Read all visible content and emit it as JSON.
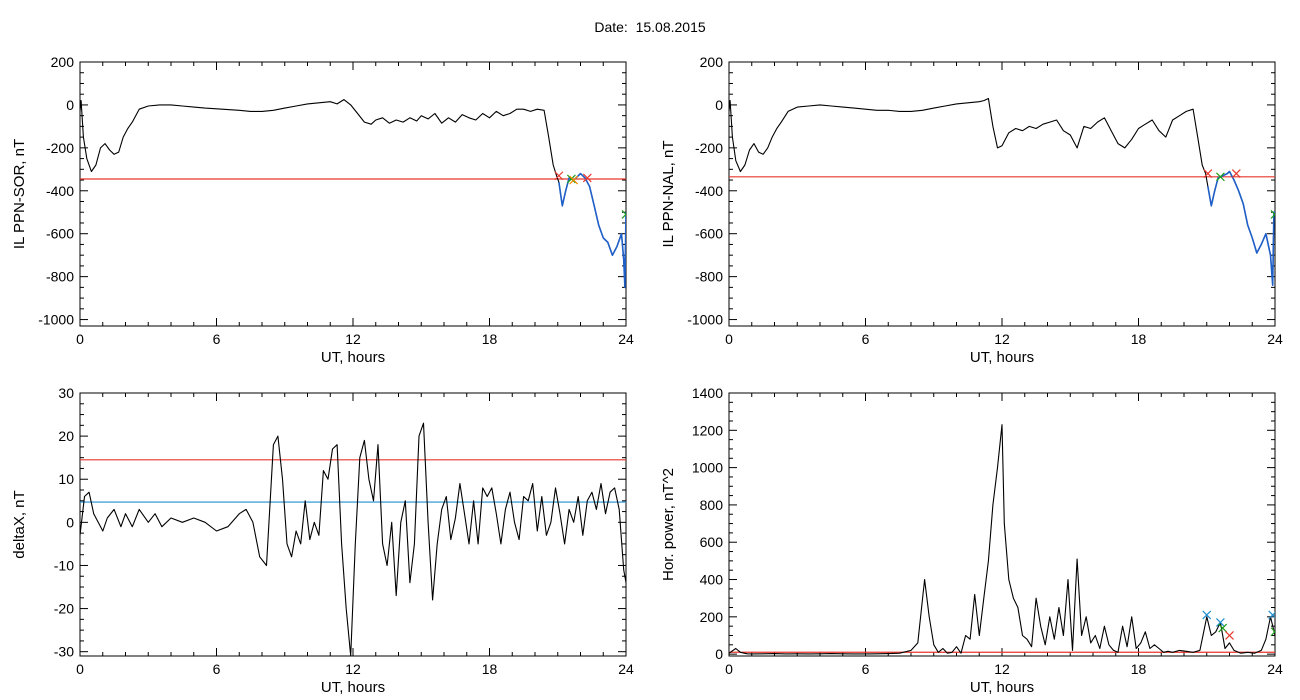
{
  "header": {
    "date_label": "Date:",
    "date_value": "15.08.2015"
  },
  "colors": {
    "trace": "#000000",
    "threshold_red": "#e8372c",
    "threshold_blue": "#1f8fd0",
    "substorm_blue": "#1f5fc8",
    "marker_green": "#1aa01a",
    "marker_blue": "#1f8fd0"
  },
  "chart_data": [
    {
      "id": "sor",
      "type": "line",
      "title": "",
      "xlabel": "UT, hours",
      "ylabel": "IL PPN-SOR, nT",
      "xlim": [
        0,
        24
      ],
      "ylim": [
        -1030,
        200
      ],
      "xticks": [
        0,
        6,
        12,
        18,
        24
      ],
      "yticks": [
        -1000,
        -800,
        -600,
        -400,
        -200,
        0,
        200
      ],
      "series": [
        {
          "color": "#000000",
          "x": [
            0,
            0.05,
            0.15,
            0.3,
            0.5,
            0.7,
            0.9,
            1.1,
            1.3,
            1.5,
            1.7,
            1.9,
            2.1,
            2.3,
            2.6,
            3.0,
            3.5,
            4.0,
            4.5,
            5.0,
            5.5,
            6.0,
            6.5,
            7.0,
            7.5,
            8.0,
            8.5,
            9.0,
            9.5,
            10.0,
            10.5,
            11.0,
            11.3,
            11.6,
            11.9,
            12.2,
            12.5,
            12.8,
            13.0,
            13.3,
            13.6,
            13.9,
            14.2,
            14.5,
            14.8,
            15.0,
            15.3,
            15.6,
            15.9,
            16.2,
            16.5,
            16.8,
            17.1,
            17.4,
            17.7,
            18.0,
            18.3,
            18.6,
            18.9,
            19.2,
            19.5,
            19.8,
            20.1,
            20.4,
            20.6,
            20.8,
            20.95,
            21.05,
            21.2,
            21.35,
            21.5,
            21.7,
            21.9,
            22.0,
            22.2,
            22.4,
            22.6,
            22.8,
            23.0,
            23.2,
            23.4,
            23.6,
            23.8,
            23.9,
            23.95,
            24.0
          ],
          "y": [
            -30,
            20,
            -150,
            -250,
            -310,
            -280,
            -200,
            -180,
            -210,
            -230,
            -220,
            -150,
            -110,
            -80,
            -20,
            -5,
            0,
            0,
            -5,
            -10,
            -15,
            -18,
            -22,
            -25,
            -30,
            -30,
            -25,
            -15,
            -5,
            5,
            10,
            15,
            5,
            25,
            0,
            -40,
            -80,
            -90,
            -70,
            -60,
            -85,
            -70,
            -80,
            -60,
            -75,
            -50,
            -65,
            -40,
            -85,
            -60,
            -80,
            -45,
            -60,
            -70,
            -40,
            -60,
            -30,
            -50,
            -40,
            -20,
            -20,
            -30,
            -20,
            -25,
            -150,
            -280,
            -330,
            -360,
            -470,
            -400,
            -340,
            -350,
            -330,
            -320,
            -340,
            -380,
            -470,
            -560,
            -620,
            -640,
            -700,
            -660,
            -600,
            -720,
            -850,
            -500
          ]
        }
      ],
      "threshold_lines": [
        {
          "y": -345,
          "color": "#e8372c"
        }
      ],
      "markers": [
        {
          "x": 21.05,
          "y": -330,
          "color": "#e8372c",
          "symbol": "x"
        },
        {
          "x": 21.6,
          "y": -345,
          "color": "#1aa01a",
          "symbol": "x"
        },
        {
          "x": 21.7,
          "y": -350,
          "color": "#ff8c00",
          "symbol": "x"
        },
        {
          "x": 22.3,
          "y": -340,
          "color": "#e8372c",
          "symbol": "x"
        },
        {
          "x": 24.0,
          "y": -510,
          "color": "#1aa01a",
          "symbol": "x"
        }
      ],
      "highlight": {
        "x_from": 21.0,
        "x_to": 24.0,
        "color": "#1f5fc8"
      }
    },
    {
      "id": "nal",
      "type": "line",
      "title": "",
      "xlabel": "UT, hours",
      "ylabel": "IL PPN-NAL, nT",
      "xlim": [
        0,
        24
      ],
      "ylim": [
        -1030,
        200
      ],
      "xticks": [
        0,
        6,
        12,
        18,
        24
      ],
      "yticks": [
        -1000,
        -800,
        -600,
        -400,
        -200,
        0,
        200
      ],
      "series": [
        {
          "color": "#000000",
          "x": [
            0,
            0.05,
            0.15,
            0.3,
            0.5,
            0.7,
            0.9,
            1.1,
            1.3,
            1.5,
            1.7,
            1.9,
            2.1,
            2.3,
            2.6,
            3.0,
            3.5,
            4.0,
            4.5,
            5.0,
            5.5,
            6.0,
            6.5,
            7.0,
            7.5,
            8.0,
            8.5,
            9.0,
            9.5,
            10.0,
            10.5,
            11.0,
            11.2,
            11.4,
            11.6,
            11.8,
            12.0,
            12.3,
            12.6,
            12.9,
            13.2,
            13.5,
            13.8,
            14.1,
            14.4,
            14.7,
            15.0,
            15.3,
            15.6,
            15.9,
            16.2,
            16.5,
            16.8,
            17.1,
            17.4,
            17.7,
            18.0,
            18.3,
            18.6,
            18.9,
            19.2,
            19.5,
            19.8,
            20.1,
            20.4,
            20.6,
            20.8,
            20.95,
            21.05,
            21.2,
            21.35,
            21.5,
            21.7,
            21.9,
            22.0,
            22.2,
            22.4,
            22.6,
            22.8,
            23.0,
            23.2,
            23.4,
            23.6,
            23.8,
            23.9,
            23.95,
            24.0
          ],
          "y": [
            -30,
            20,
            -150,
            -260,
            -310,
            -280,
            -210,
            -180,
            -220,
            -230,
            -200,
            -150,
            -110,
            -80,
            -30,
            -10,
            -5,
            0,
            -5,
            -10,
            -15,
            -20,
            -25,
            -25,
            -30,
            -30,
            -25,
            -15,
            -5,
            5,
            10,
            15,
            20,
            30,
            -100,
            -200,
            -190,
            -130,
            -110,
            -120,
            -100,
            -110,
            -90,
            -80,
            -70,
            -120,
            -140,
            -200,
            -100,
            -110,
            -80,
            -60,
            -120,
            -180,
            -200,
            -160,
            -110,
            -90,
            -70,
            -120,
            -150,
            -70,
            -50,
            -30,
            -20,
            -150,
            -280,
            -320,
            -380,
            -470,
            -400,
            -340,
            -330,
            -320,
            -310,
            -350,
            -400,
            -460,
            -560,
            -620,
            -690,
            -650,
            -600,
            -700,
            -840,
            -500,
            -500
          ]
        }
      ],
      "threshold_lines": [
        {
          "y": -335,
          "color": "#e8372c"
        }
      ],
      "markers": [
        {
          "x": 21.05,
          "y": -320,
          "color": "#e8372c",
          "symbol": "x"
        },
        {
          "x": 21.6,
          "y": -335,
          "color": "#1aa01a",
          "symbol": "x"
        },
        {
          "x": 22.3,
          "y": -320,
          "color": "#e8372c",
          "symbol": "x"
        },
        {
          "x": 24.0,
          "y": -510,
          "color": "#1aa01a",
          "symbol": "x"
        }
      ],
      "highlight": {
        "x_from": 21.0,
        "x_to": 24.0,
        "color": "#1f5fc8"
      }
    },
    {
      "id": "deltax",
      "type": "line",
      "title": "",
      "xlabel": "UT, hours",
      "ylabel": "deltaX, nT",
      "xlim": [
        0,
        24
      ],
      "ylim": [
        -31,
        30
      ],
      "xticks": [
        0,
        6,
        12,
        18,
        24
      ],
      "yticks": [
        -30,
        -20,
        -10,
        0,
        10,
        20,
        30
      ],
      "series": [
        {
          "color": "#000000",
          "x": [
            0,
            0.2,
            0.4,
            0.6,
            0.8,
            1.0,
            1.2,
            1.5,
            1.8,
            2.0,
            2.3,
            2.6,
            3.0,
            3.3,
            3.6,
            4.0,
            4.5,
            5.0,
            5.5,
            6.0,
            6.5,
            7.0,
            7.3,
            7.6,
            7.9,
            8.2,
            8.5,
            8.7,
            8.9,
            9.1,
            9.3,
            9.5,
            9.7,
            9.9,
            10.1,
            10.3,
            10.5,
            10.7,
            10.9,
            11.1,
            11.3,
            11.5,
            11.7,
            11.9,
            12.1,
            12.3,
            12.5,
            12.7,
            12.9,
            13.1,
            13.3,
            13.5,
            13.7,
            13.9,
            14.1,
            14.3,
            14.5,
            14.7,
            14.9,
            15.1,
            15.3,
            15.5,
            15.7,
            15.9,
            16.1,
            16.3,
            16.5,
            16.7,
            16.9,
            17.1,
            17.3,
            17.5,
            17.7,
            17.9,
            18.1,
            18.3,
            18.5,
            18.7,
            18.9,
            19.1,
            19.3,
            19.5,
            19.7,
            19.9,
            20.1,
            20.3,
            20.5,
            20.7,
            20.9,
            21.1,
            21.3,
            21.5,
            21.7,
            21.9,
            22.1,
            22.3,
            22.5,
            22.7,
            22.9,
            23.1,
            23.3,
            23.5,
            23.7,
            23.9,
            24.0
          ],
          "y": [
            -3,
            6,
            7,
            2,
            0,
            -2,
            1,
            3,
            -1,
            2,
            -1,
            3,
            0,
            2,
            -1,
            1,
            0,
            1,
            0,
            -2,
            -1,
            2,
            3,
            0,
            -8,
            -10,
            18,
            20,
            10,
            -5,
            -8,
            -2,
            -5,
            5,
            -4,
            0,
            -3,
            12,
            10,
            17,
            18,
            -5,
            -20,
            -31,
            -5,
            15,
            19,
            10,
            5,
            18,
            -5,
            -10,
            0,
            -17,
            0,
            5,
            -14,
            -5,
            20,
            23,
            0,
            -18,
            -5,
            3,
            6,
            -4,
            1,
            9,
            2,
            -5,
            5,
            -5,
            8,
            6,
            8,
            2,
            -5,
            3,
            7,
            0,
            -4,
            6,
            5,
            9,
            -2,
            6,
            -3,
            0,
            8,
            2,
            -5,
            3,
            0,
            6,
            -3,
            5,
            7,
            3,
            9,
            2,
            7,
            8,
            3,
            -11,
            -14
          ]
        }
      ],
      "threshold_lines": [
        {
          "y": 14.5,
          "color": "#e8372c"
        },
        {
          "y": 4.7,
          "color": "#1f8fd0"
        }
      ],
      "markers": []
    },
    {
      "id": "horpower",
      "type": "line",
      "title": "",
      "xlabel": "UT, hours",
      "ylabel": "Hor. power, nT^2",
      "xlim": [
        0,
        24
      ],
      "ylim": [
        -10,
        1400
      ],
      "xticks": [
        0,
        6,
        12,
        18,
        24
      ],
      "yticks": [
        0,
        200,
        400,
        600,
        800,
        1000,
        1200,
        1400
      ],
      "series": [
        {
          "color": "#000000",
          "x": [
            0,
            0.3,
            0.5,
            0.8,
            1.0,
            1.5,
            2.0,
            2.5,
            3.0,
            3.5,
            4.0,
            4.5,
            5.0,
            5.5,
            6.0,
            6.5,
            7.0,
            7.5,
            8.0,
            8.3,
            8.6,
            8.8,
            9.0,
            9.2,
            9.4,
            9.6,
            9.8,
            10.0,
            10.2,
            10.4,
            10.6,
            10.8,
            11.0,
            11.2,
            11.4,
            11.6,
            11.8,
            12.0,
            12.1,
            12.3,
            12.5,
            12.7,
            12.9,
            13.1,
            13.3,
            13.5,
            13.7,
            13.9,
            14.1,
            14.3,
            14.5,
            14.7,
            14.9,
            15.1,
            15.3,
            15.5,
            15.7,
            15.9,
            16.1,
            16.3,
            16.5,
            16.7,
            16.9,
            17.1,
            17.3,
            17.5,
            17.7,
            17.9,
            18.1,
            18.3,
            18.5,
            18.7,
            18.9,
            19.1,
            19.3,
            19.5,
            19.8,
            20.1,
            20.4,
            20.7,
            21.0,
            21.2,
            21.4,
            21.6,
            21.8,
            22.0,
            22.2,
            22.5,
            22.8,
            23.1,
            23.4,
            23.6,
            23.8,
            24.0
          ],
          "y": [
            5,
            30,
            10,
            2,
            1,
            2,
            3,
            1,
            2,
            1,
            2,
            3,
            2,
            1,
            1,
            2,
            3,
            5,
            20,
            60,
            400,
            200,
            50,
            10,
            30,
            5,
            10,
            40,
            5,
            100,
            80,
            320,
            100,
            300,
            500,
            800,
            1000,
            1230,
            700,
            400,
            300,
            250,
            100,
            80,
            40,
            300,
            150,
            50,
            200,
            80,
            250,
            100,
            400,
            20,
            510,
            100,
            200,
            60,
            100,
            30,
            150,
            50,
            20,
            10,
            150,
            40,
            200,
            30,
            60,
            120,
            30,
            50,
            30,
            10,
            15,
            10,
            20,
            15,
            10,
            20,
            200,
            100,
            120,
            170,
            30,
            60,
            20,
            5,
            10,
            5,
            20,
            80,
            200,
            100
          ]
        }
      ],
      "threshold_lines": [
        {
          "y": 10,
          "color": "#e8372c"
        }
      ],
      "markers": [
        {
          "x": 21.0,
          "y": 210,
          "color": "#1f8fd0",
          "symbol": "x"
        },
        {
          "x": 21.6,
          "y": 170,
          "color": "#1f8fd0",
          "symbol": "x"
        },
        {
          "x": 21.7,
          "y": 140,
          "color": "#1aa01a",
          "symbol": "x"
        },
        {
          "x": 22.0,
          "y": 100,
          "color": "#e8372c",
          "symbol": "x"
        },
        {
          "x": 23.9,
          "y": 210,
          "color": "#1f8fd0",
          "symbol": "x"
        },
        {
          "x": 24.0,
          "y": 120,
          "color": "#1aa01a",
          "symbol": "x"
        }
      ]
    }
  ]
}
